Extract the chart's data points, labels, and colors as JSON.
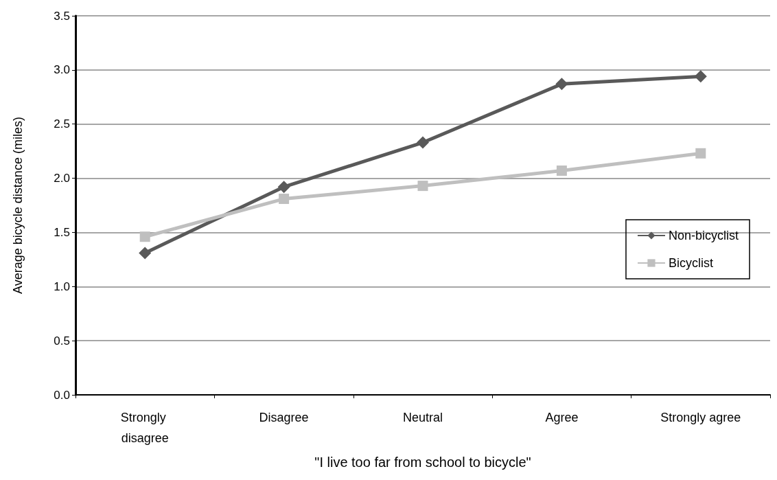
{
  "chart_data": {
    "type": "line",
    "xlabel": "\"I live too far from school to bicycle\"",
    "ylabel": "Average bicycle distance (miles)",
    "categories": [
      "Strongly disagree",
      "Disagree",
      "Neutral",
      "Agree",
      "Strongly agree"
    ],
    "series": [
      {
        "name": "Non-bicyclist",
        "color": "#595959",
        "marker": "diamond",
        "values": [
          1.31,
          1.92,
          2.33,
          2.87,
          2.94
        ]
      },
      {
        "name": "Bicyclist",
        "color": "#bfbfbf",
        "marker": "square",
        "values": [
          1.46,
          1.81,
          1.93,
          2.07,
          2.23
        ]
      }
    ],
    "ylim": [
      0,
      3.5
    ],
    "yticks": [
      {
        "value": 0,
        "label": "0.0"
      },
      0.5,
      {
        "value": 1,
        "label": "1.0"
      },
      1.5,
      {
        "value": 2,
        "label": "2.0"
      },
      2.5,
      {
        "value": 3,
        "label": "3.0"
      },
      3.5
    ],
    "grid": "y",
    "legend": "right"
  }
}
